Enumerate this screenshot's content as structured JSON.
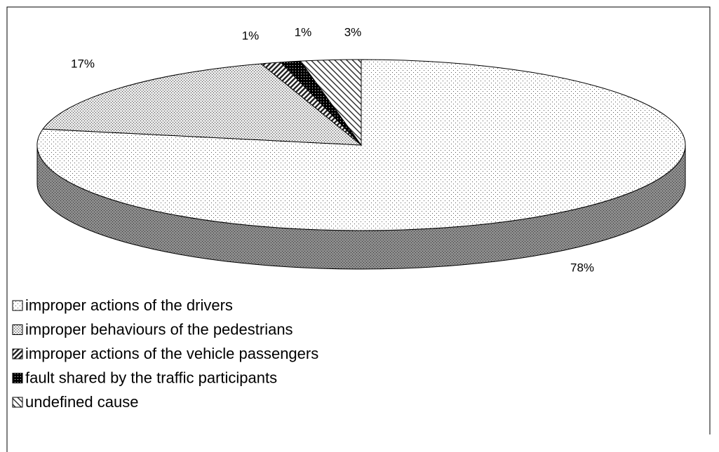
{
  "chart_data": {
    "type": "pie",
    "categories": [
      "improper actions of the drivers",
      "improper behaviours of the pedestrians",
      "improper actions of the vehicle passengers",
      "fault shared by the traffic participants",
      "undefined cause"
    ],
    "values": [
      78,
      17,
      1,
      1,
      3
    ],
    "value_labels": [
      "78%",
      "17%",
      "1%",
      "1%",
      "3%"
    ]
  }
}
